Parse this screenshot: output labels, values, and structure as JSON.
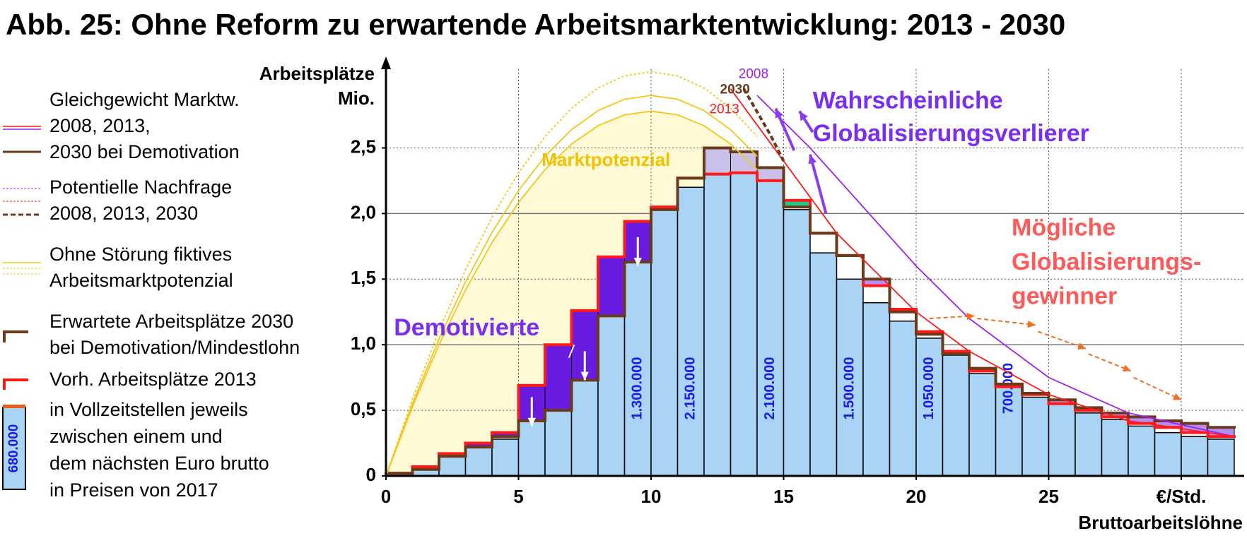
{
  "chart_data": {
    "type": "histogram",
    "title": "Abb. 25:  Ohne Reform zu erwartende Arbeitsmarktentwicklung: 2013 - 2030",
    "y_label": [
      "Arbeitsplätze",
      "Mio."
    ],
    "x_label": "Bruttoarbeitslöhne",
    "xlim": [
      0,
      32
    ],
    "xticks": [
      0,
      5,
      10,
      15,
      20,
      25,
      {
        "value": 30,
        "label": "€/Std."
      }
    ],
    "ylim": [
      0,
      3.1
    ],
    "yticks": [
      0,
      {
        "value": 0.5,
        "label": "0,5"
      },
      {
        "value": 1.0,
        "label": "1,0"
      },
      {
        "value": 1.5,
        "label": "1,5"
      },
      {
        "value": 2.0,
        "label": "2,0"
      },
      {
        "value": 2.5,
        "label": "2,5"
      }
    ],
    "grid": true,
    "bins": [
      0,
      1,
      2,
      3,
      4,
      5,
      6,
      7,
      8,
      9,
      10,
      11,
      12,
      13,
      14,
      15,
      16,
      17,
      18,
      19,
      20,
      21,
      22,
      23,
      24,
      25,
      26,
      27,
      28,
      29,
      30,
      31,
      32
    ],
    "bars": {
      "color": "#a9d4f5",
      "values": [
        0.02,
        0.05,
        0.15,
        0.22,
        0.28,
        0.42,
        0.5,
        0.73,
        1.22,
        1.63,
        2.03,
        2.2,
        2.3,
        2.32,
        2.25,
        2.03,
        1.7,
        1.5,
        1.32,
        1.18,
        1.05,
        0.92,
        0.78,
        0.68,
        0.6,
        0.55,
        0.48,
        0.43,
        0.38,
        0.33,
        0.3,
        0.28
      ]
    },
    "steps": [
      {
        "color": "#ff1a1a",
        "values": [
          0.02,
          0.07,
          0.17,
          0.25,
          0.33,
          0.69,
          1.0,
          1.26,
          1.67,
          1.94,
          2.05,
          2.27,
          2.3,
          2.31,
          2.25,
          2.1,
          1.85,
          1.68,
          1.45,
          1.27,
          1.1,
          0.95,
          0.8,
          0.68,
          0.62,
          0.55,
          0.5,
          0.45,
          0.4,
          0.37,
          0.33,
          0.3
        ]
      },
      {
        "color": "#6b3a1a",
        "values": [
          0.02,
          0.05,
          0.15,
          0.22,
          0.3,
          0.42,
          0.5,
          0.73,
          1.22,
          1.63,
          2.03,
          2.27,
          2.5,
          2.47,
          2.35,
          2.05,
          1.85,
          1.68,
          1.5,
          1.25,
          1.08,
          0.93,
          0.82,
          0.7,
          0.63,
          0.58,
          0.52,
          0.48,
          0.45,
          0.42,
          0.4,
          0.37
        ]
      }
    ],
    "bar_annotations": [
      "1.300.000",
      "2.150.000",
      "2.100.000",
      "1.500.000",
      "1.050.000",
      "700.000"
    ],
    "curves": [
      {
        "color": "#f5c518",
        "dash": true,
        "x": [
          0,
          1,
          2,
          3,
          4,
          5,
          6,
          7,
          8,
          9,
          10,
          11,
          12,
          13,
          14
        ],
        "values": [
          0,
          0.585,
          1.109,
          1.571,
          1.971,
          2.31,
          2.587,
          2.803,
          2.957,
          3.049,
          3.08,
          3.049,
          2.957,
          2.803,
          2.587
        ]
      },
      {
        "color": "#f5c518",
        "dash": false,
        "x": [
          0,
          1,
          2,
          3,
          4,
          5,
          6,
          7,
          8,
          9,
          10,
          11,
          12,
          13,
          14
        ],
        "values": [
          0,
          0.551,
          1.044,
          1.479,
          1.856,
          2.175,
          2.436,
          2.639,
          2.784,
          2.871,
          2.9,
          2.871,
          2.784,
          2.639,
          2.436
        ]
      },
      {
        "color": "#f5c518",
        "dash": false,
        "x": [
          0,
          1,
          2,
          3,
          4,
          5,
          6,
          7,
          8,
          9,
          10,
          11,
          12,
          13,
          14
        ],
        "values": [
          0,
          0.528,
          1.001,
          1.418,
          1.779,
          2.085,
          2.335,
          2.53,
          2.669,
          2.752,
          2.78,
          2.752,
          2.669,
          2.53,
          2.335
        ]
      },
      {
        "color": "#a020f0",
        "dash": false,
        "x": [
          14,
          16,
          18,
          20,
          22,
          25,
          28,
          32
        ],
        "values": [
          2.9,
          2.5,
          2.05,
          1.6,
          1.2,
          0.75,
          0.48,
          0.3
        ]
      },
      {
        "color": "#ff1a1a",
        "dash": false,
        "x": [
          13,
          15,
          17,
          20,
          22,
          25,
          28,
          32
        ],
        "values": [
          2.95,
          2.4,
          1.85,
          1.25,
          0.95,
          0.62,
          0.42,
          0.3
        ]
      },
      {
        "color": "#6b3a1a",
        "dash": true,
        "x": [
          13.5,
          14.5,
          15
        ],
        "values": [
          2.95,
          2.6,
          2.4
        ]
      }
    ],
    "annotations": [
      "Marktpotenzial",
      "Wahrscheinliche",
      "Globalisierungsverlierer",
      "Mögliche",
      "Globalisierungs-",
      "gewinner",
      "Demotivierte",
      "2008",
      "2030",
      "2013"
    ],
    "legend": [
      {
        "lines": [
          "Gleichgewicht Marktw.",
          "2008, 2013,",
          "2030 bei Demotivation"
        ]
      },
      {
        "lines": [
          "Potentielle Nachfrage",
          "2008, 2013, 2030"
        ]
      },
      {
        "lines": [
          "Ohne Störung fiktives",
          "Arbeitsmarktpotenzial"
        ]
      },
      {
        "lines": [
          "Erwartete Arbeitsplätze 2030",
          "bei Demotivation/Mindestlohn"
        ]
      },
      {
        "lines": [
          "Vorh. Arbeitsplätze 2013"
        ]
      },
      {
        "lines": [
          "in Vollzeitstellen jeweils",
          "zwischen einem und",
          "dem nächsten Euro brutto",
          "in Preisen von 2017"
        ],
        "swatch_label": "680.000"
      }
    ]
  }
}
